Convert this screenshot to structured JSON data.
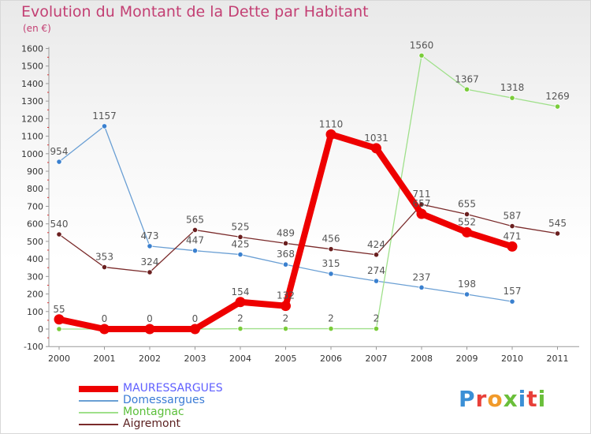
{
  "title": "Evolution du Montant de la Dette par Habitant",
  "subtitle": "(en €)",
  "brand": {
    "text": "Proxiti",
    "letter_colors": [
      "#3a8fd6",
      "#e8403a",
      "#f19a2a",
      "#6abf3a",
      "#3a8fd6",
      "#e8403a",
      "#6abf3a"
    ]
  },
  "chart_data": {
    "type": "line",
    "title": "Evolution du Montant de la Dette par Habitant",
    "subtitle": "(en €)",
    "x": [
      "2000",
      "2001",
      "2002",
      "2003",
      "2004",
      "2005",
      "2006",
      "2007",
      "2008",
      "2009",
      "2010",
      "2011"
    ],
    "ylim": [
      -100,
      1600
    ],
    "yticks": [
      -100,
      0,
      100,
      200,
      300,
      400,
      500,
      600,
      700,
      800,
      900,
      1000,
      1100,
      1200,
      1300,
      1400,
      1500,
      1600
    ],
    "grid": false,
    "legend_position": "bottom-left",
    "series": [
      {
        "name": "MAURESSARGUES",
        "color": "#ee0000",
        "marker_color": "#ee0000",
        "text_color": "#6060ff",
        "line_width": 8,
        "values": [
          55,
          0,
          0,
          0,
          154,
          132,
          1110,
          1031,
          657,
          552,
          471,
          null
        ],
        "labels": [
          "55",
          "0",
          "0",
          "0",
          "154",
          "132",
          "1110",
          "1031",
          "657",
          "552",
          "471",
          ""
        ]
      },
      {
        "name": "Domessargues",
        "color": "#6a9fd4",
        "marker_color": "#3a80cf",
        "text_color": "#3a7bd5",
        "line_width": 1.3,
        "values": [
          954,
          1157,
          473,
          447,
          425,
          368,
          315,
          274,
          237,
          198,
          157,
          null
        ],
        "labels": [
          "954",
          "1157",
          "473",
          "447",
          "425",
          "368",
          "315",
          "274",
          "237",
          "198",
          "157",
          ""
        ]
      },
      {
        "name": "Montagnac",
        "color": "#9fe08a",
        "marker_color": "#7acc3a",
        "text_color": "#5bbf3a",
        "line_width": 1.3,
        "values": [
          0,
          0,
          0,
          0,
          2,
          2,
          2,
          2,
          1560,
          1367,
          1318,
          1269
        ],
        "labels": [
          "",
          "",
          "",
          "",
          "2",
          "2",
          "2",
          "2",
          "1560",
          "1367",
          "1318",
          "1269"
        ]
      },
      {
        "name": "Aigremont",
        "color": "#7a2a2a",
        "marker_color": "#6a1f1f",
        "text_color": "#5a1f1f",
        "line_width": 1.3,
        "values": [
          540,
          353,
          324,
          565,
          525,
          489,
          456,
          424,
          711,
          655,
          587,
          545
        ],
        "labels": [
          "540",
          "353",
          "324",
          "565",
          "525",
          "489",
          "456",
          "424",
          "711",
          "655",
          "587",
          "545"
        ]
      }
    ]
  }
}
